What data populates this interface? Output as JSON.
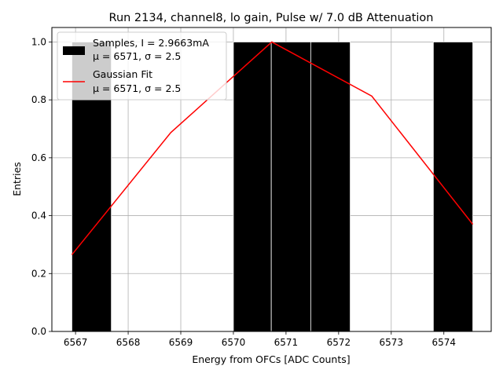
{
  "chart_data": {
    "type": "bar",
    "title": "Run 2134, channel8, lo gain, Pulse w/ 7.0 dB Attenuation",
    "xlabel": "Energy from OFCs [ADC Counts]",
    "ylabel": "Entries",
    "xlim": [
      6566.55,
      6574.9
    ],
    "ylim": [
      0.0,
      1.05
    ],
    "xticks": [
      6567,
      6568,
      6569,
      6570,
      6571,
      6572,
      6573,
      6574
    ],
    "yticks": [
      0.0,
      0.2,
      0.4,
      0.6,
      0.8,
      1.0
    ],
    "grid": true,
    "legend_position": "top-left",
    "series": [
      {
        "name": "Samples, I = 2.9663mA",
        "name_line2": "μ = 6571, σ = 2.5",
        "type": "bar",
        "color": "#000000",
        "bins": [
          {
            "x0": 6566.93,
            "x1": 6567.68,
            "value": 1.0
          },
          {
            "x0": 6570.0,
            "x1": 6570.72,
            "value": 1.0
          },
          {
            "x0": 6570.72,
            "x1": 6571.47,
            "value": 1.0
          },
          {
            "x0": 6571.47,
            "x1": 6572.22,
            "value": 1.0
          },
          {
            "x0": 6573.8,
            "x1": 6574.55,
            "value": 1.0
          }
        ]
      },
      {
        "name": "Gaussian Fit",
        "name_line2": "μ = 6571, σ = 2.5",
        "type": "line",
        "color": "#ff0000",
        "x": [
          6566.93,
          6568.81,
          6570.73,
          6572.63,
          6574.55
        ],
        "y": [
          0.265,
          0.687,
          1.0,
          0.813,
          0.37
        ]
      }
    ]
  }
}
